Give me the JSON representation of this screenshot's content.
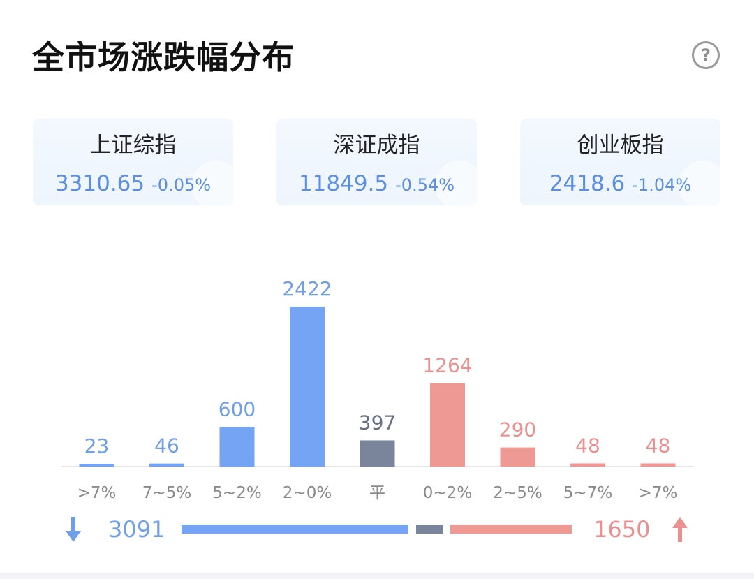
{
  "header": {
    "title": "全市场涨跌幅分布",
    "help_label": "?"
  },
  "indices": [
    {
      "name": "上证综指",
      "value": "3310.65",
      "change": "-0.05%"
    },
    {
      "name": "深证成指",
      "value": "11849.5",
      "change": "-0.54%"
    },
    {
      "name": "创业板指",
      "value": "2418.6",
      "change": "-1.04%"
    }
  ],
  "summary": {
    "down_count": "3091",
    "up_count": "1650",
    "flat_count": 397,
    "down_icon": "down-arrow-icon",
    "up_icon": "up-arrow-icon"
  },
  "colors": {
    "down": "#74a4f3",
    "flat": "#7a849b",
    "up": "#ef9995",
    "down_text": "#6f9fe8",
    "up_text": "#eb9090",
    "flat_text": "#666e80"
  },
  "chart_data": {
    "type": "bar",
    "categories": [
      ">7%",
      "7~5%",
      "5~2%",
      "2~0%",
      "平",
      "0~2%",
      "2~5%",
      "5~7%",
      ">7%"
    ],
    "values": [
      23,
      46,
      600,
      2422,
      397,
      1264,
      290,
      48,
      48
    ],
    "groups": [
      "down",
      "down",
      "down",
      "down",
      "flat",
      "up",
      "up",
      "up",
      "up"
    ],
    "ylim": [
      0,
      2422
    ],
    "grid": false,
    "legend": "none"
  }
}
